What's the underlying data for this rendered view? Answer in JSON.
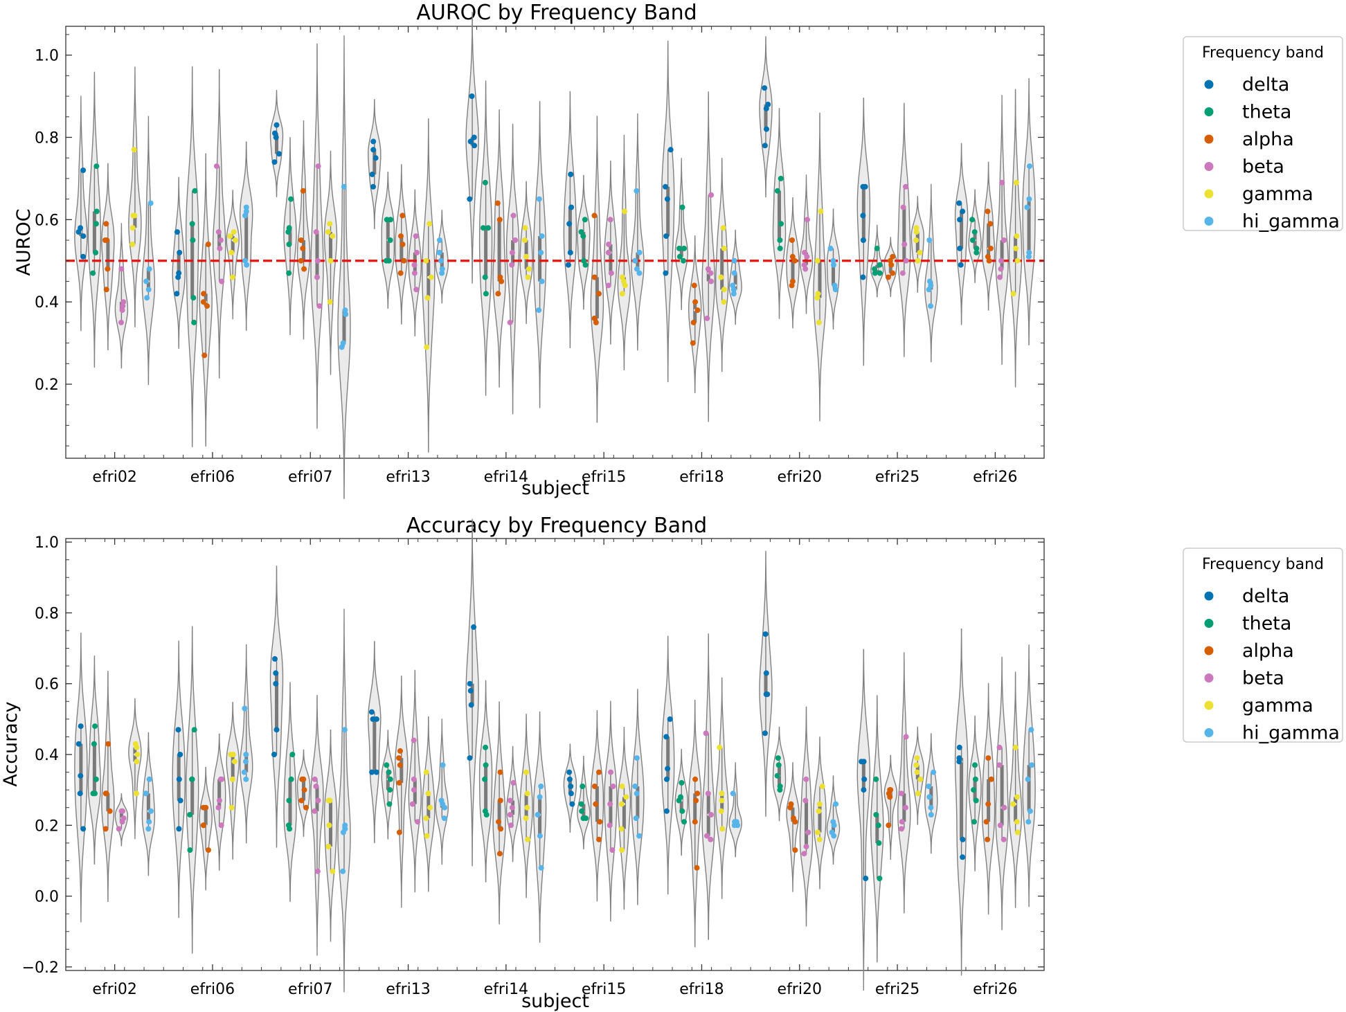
{
  "figure": {
    "legend_title": "Frequency band",
    "bands": [
      {
        "name": "delta",
        "color": "#0173b2"
      },
      {
        "name": "theta",
        "color": "#029e73"
      },
      {
        "name": "alpha",
        "color": "#d55e00"
      },
      {
        "name": "beta",
        "color": "#cc78bc"
      },
      {
        "name": "gamma",
        "color": "#ece133"
      },
      {
        "name": "hi_gamma",
        "color": "#56b4e9"
      }
    ]
  },
  "chart_data": [
    {
      "type": "violin",
      "title": "AUROC by Frequency Band",
      "xlabel": "subject",
      "ylabel": "AUROC",
      "ylim": [
        0.02,
        1.07
      ],
      "yticks": [
        "0.2",
        "0.4",
        "0.6",
        "0.8",
        "1.0"
      ],
      "reference_line": {
        "y": 0.5,
        "color": "#e8120e",
        "style": "dashed"
      },
      "legend": "right",
      "categories": [
        "efri02",
        "efri06",
        "efri07",
        "efri13",
        "efri14",
        "efri15",
        "efri18",
        "efri20",
        "efri25",
        "efri26"
      ],
      "series": [
        {
          "name": "delta",
          "values": [
            [
              0.51,
              0.56,
              0.57,
              0.58,
              0.72
            ],
            [
              0.42,
              0.46,
              0.47,
              0.52,
              0.57
            ],
            [
              0.74,
              0.76,
              0.8,
              0.81,
              0.83
            ],
            [
              0.68,
              0.71,
              0.75,
              0.77,
              0.79
            ],
            [
              0.65,
              0.78,
              0.79,
              0.8,
              0.9
            ],
            [
              0.49,
              0.52,
              0.59,
              0.63,
              0.71
            ],
            [
              0.47,
              0.56,
              0.65,
              0.68,
              0.77
            ],
            [
              0.78,
              0.82,
              0.87,
              0.88,
              0.92
            ],
            [
              0.46,
              0.55,
              0.61,
              0.68,
              0.68
            ],
            [
              0.49,
              0.53,
              0.6,
              0.62,
              0.64
            ]
          ]
        },
        {
          "name": "theta",
          "values": [
            [
              0.47,
              0.52,
              0.59,
              0.62,
              0.73
            ],
            [
              0.35,
              0.41,
              0.55,
              0.59,
              0.67
            ],
            [
              0.47,
              0.54,
              0.57,
              0.58,
              0.65
            ],
            [
              0.5,
              0.5,
              0.55,
              0.6,
              0.6
            ],
            [
              0.42,
              0.46,
              0.58,
              0.58,
              0.69
            ],
            [
              0.49,
              0.5,
              0.56,
              0.57,
              0.6
            ],
            [
              0.5,
              0.51,
              0.53,
              0.53,
              0.63
            ],
            [
              0.53,
              0.55,
              0.59,
              0.67,
              0.7
            ],
            [
              0.47,
              0.47,
              0.48,
              0.49,
              0.53
            ],
            [
              0.52,
              0.53,
              0.55,
              0.57,
              0.6
            ]
          ]
        },
        {
          "name": "alpha",
          "values": [
            [
              0.43,
              0.48,
              0.55,
              0.55,
              0.59
            ],
            [
              0.27,
              0.39,
              0.4,
              0.42,
              0.54
            ],
            [
              0.48,
              0.5,
              0.53,
              0.55,
              0.67
            ],
            [
              0.47,
              0.5,
              0.54,
              0.56,
              0.61
            ],
            [
              0.42,
              0.45,
              0.46,
              0.6,
              0.64
            ],
            [
              0.35,
              0.36,
              0.42,
              0.46,
              0.61
            ],
            [
              0.3,
              0.35,
              0.38,
              0.4,
              0.44
            ],
            [
              0.44,
              0.45,
              0.5,
              0.51,
              0.55
            ],
            [
              0.46,
              0.47,
              0.49,
              0.5,
              0.51
            ],
            [
              0.5,
              0.51,
              0.53,
              0.59,
              0.62
            ]
          ]
        },
        {
          "name": "beta",
          "values": [
            [
              0.35,
              0.38,
              0.39,
              0.4,
              0.48
            ],
            [
              0.45,
              0.53,
              0.55,
              0.57,
              0.73
            ],
            [
              0.39,
              0.46,
              0.5,
              0.57,
              0.73
            ],
            [
              0.43,
              0.47,
              0.49,
              0.52,
              0.56
            ],
            [
              0.35,
              0.49,
              0.52,
              0.55,
              0.61
            ],
            [
              0.44,
              0.47,
              0.52,
              0.54,
              0.6
            ],
            [
              0.36,
              0.45,
              0.47,
              0.48,
              0.66
            ],
            [
              0.48,
              0.49,
              0.51,
              0.52,
              0.6
            ],
            [
              0.47,
              0.5,
              0.54,
              0.63,
              0.68
            ],
            [
              0.46,
              0.48,
              0.5,
              0.55,
              0.69
            ]
          ]
        },
        {
          "name": "gamma",
          "values": [
            [
              0.54,
              0.58,
              0.61,
              0.61,
              0.77
            ],
            [
              0.46,
              0.52,
              0.55,
              0.56,
              0.57
            ],
            [
              0.4,
              0.5,
              0.56,
              0.57,
              0.59
            ],
            [
              0.29,
              0.41,
              0.46,
              0.5,
              0.59
            ],
            [
              0.46,
              0.48,
              0.51,
              0.55,
              0.58
            ],
            [
              0.42,
              0.44,
              0.45,
              0.46,
              0.62
            ],
            [
              0.4,
              0.43,
              0.46,
              0.53,
              0.58
            ],
            [
              0.35,
              0.41,
              0.42,
              0.5,
              0.62
            ],
            [
              0.5,
              0.52,
              0.55,
              0.57,
              0.58
            ],
            [
              0.42,
              0.5,
              0.53,
              0.56,
              0.69
            ]
          ]
        },
        {
          "name": "hi_gamma",
          "values": [
            [
              0.41,
              0.43,
              0.45,
              0.48,
              0.64
            ],
            [
              0.49,
              0.5,
              0.61,
              0.62,
              0.63
            ],
            [
              0.29,
              0.3,
              0.37,
              0.38,
              0.68
            ],
            [
              0.47,
              0.48,
              0.5,
              0.52,
              0.55
            ],
            [
              0.38,
              0.45,
              0.52,
              0.56,
              0.65
            ],
            [
              0.47,
              0.48,
              0.5,
              0.52,
              0.67
            ],
            [
              0.42,
              0.43,
              0.44,
              0.47,
              0.5
            ],
            [
              0.43,
              0.44,
              0.49,
              0.5,
              0.53
            ],
            [
              0.39,
              0.43,
              0.44,
              0.45,
              0.55
            ],
            [
              0.51,
              0.52,
              0.63,
              0.65,
              0.73
            ]
          ]
        }
      ]
    },
    {
      "type": "violin",
      "title": "Accuracy by Frequency Band",
      "xlabel": "subject",
      "ylabel": "Accuracy",
      "ylim": [
        -0.21,
        1.01
      ],
      "yticks": [
        "−0.2",
        "0.0",
        "0.2",
        "0.4",
        "0.6",
        "0.8",
        "1.0"
      ],
      "legend": "right",
      "categories": [
        "efri02",
        "efri06",
        "efri07",
        "efri13",
        "efri14",
        "efri15",
        "efri18",
        "efri20",
        "efri25",
        "efri26"
      ],
      "series": [
        {
          "name": "delta",
          "values": [
            [
              0.19,
              0.29,
              0.34,
              0.43,
              0.48
            ],
            [
              0.19,
              0.27,
              0.33,
              0.4,
              0.47
            ],
            [
              0.4,
              0.47,
              0.6,
              0.63,
              0.67
            ],
            [
              0.35,
              0.35,
              0.5,
              0.5,
              0.52
            ],
            [
              0.39,
              0.54,
              0.58,
              0.6,
              0.76
            ],
            [
              0.26,
              0.29,
              0.31,
              0.33,
              0.35
            ],
            [
              0.24,
              0.33,
              0.36,
              0.45,
              0.5
            ],
            [
              0.46,
              0.57,
              0.57,
              0.63,
              0.74
            ],
            [
              0.05,
              0.3,
              0.33,
              0.38,
              0.38
            ],
            [
              0.11,
              0.16,
              0.38,
              0.39,
              0.42
            ]
          ]
        },
        {
          "name": "theta",
          "values": [
            [
              0.29,
              0.29,
              0.33,
              0.43,
              0.48
            ],
            [
              0.13,
              0.23,
              0.33,
              0.33,
              0.47
            ],
            [
              0.19,
              0.2,
              0.27,
              0.33,
              0.4
            ],
            [
              0.26,
              0.3,
              0.33,
              0.35,
              0.37
            ],
            [
              0.23,
              0.24,
              0.33,
              0.37,
              0.42
            ],
            [
              0.22,
              0.22,
              0.24,
              0.26,
              0.31
            ],
            [
              0.21,
              0.24,
              0.27,
              0.28,
              0.32
            ],
            [
              0.3,
              0.31,
              0.34,
              0.37,
              0.39
            ],
            [
              0.05,
              0.15,
              0.2,
              0.23,
              0.33
            ],
            [
              0.21,
              0.27,
              0.3,
              0.33,
              0.37
            ]
          ]
        },
        {
          "name": "alpha",
          "values": [
            [
              0.19,
              0.24,
              0.29,
              0.29,
              0.43
            ],
            [
              0.13,
              0.2,
              0.2,
              0.25,
              0.25
            ],
            [
              0.25,
              0.27,
              0.3,
              0.33,
              0.33
            ],
            [
              0.18,
              0.32,
              0.37,
              0.39,
              0.41
            ],
            [
              0.12,
              0.19,
              0.21,
              0.27,
              0.35
            ],
            [
              0.16,
              0.21,
              0.26,
              0.31,
              0.35
            ],
            [
              0.08,
              0.21,
              0.27,
              0.29,
              0.33
            ],
            [
              0.13,
              0.21,
              0.22,
              0.25,
              0.26
            ],
            [
              0.2,
              0.28,
              0.29,
              0.3,
              0.3
            ],
            [
              0.16,
              0.21,
              0.26,
              0.33,
              0.39
            ]
          ]
        },
        {
          "name": "beta",
          "values": [
            [
              0.19,
              0.21,
              0.22,
              0.24,
              0.24
            ],
            [
              0.2,
              0.25,
              0.27,
              0.33,
              0.33
            ],
            [
              0.07,
              0.24,
              0.27,
              0.31,
              0.33
            ],
            [
              0.21,
              0.26,
              0.3,
              0.33,
              0.44
            ],
            [
              0.2,
              0.23,
              0.25,
              0.27,
              0.32
            ],
            [
              0.13,
              0.2,
              0.26,
              0.31,
              0.35
            ],
            [
              0.16,
              0.17,
              0.23,
              0.29,
              0.46
            ],
            [
              0.12,
              0.14,
              0.18,
              0.27,
              0.33
            ],
            [
              0.19,
              0.21,
              0.25,
              0.29,
              0.45
            ],
            [
              0.16,
              0.2,
              0.25,
              0.37,
              0.42
            ]
          ]
        },
        {
          "name": "gamma",
          "values": [
            [
              0.29,
              0.38,
              0.4,
              0.42,
              0.43
            ],
            [
              0.25,
              0.33,
              0.38,
              0.4,
              0.4
            ],
            [
              0.07,
              0.14,
              0.2,
              0.27,
              0.27
            ],
            [
              0.17,
              0.22,
              0.25,
              0.29,
              0.35
            ],
            [
              0.16,
              0.22,
              0.25,
              0.29,
              0.35
            ],
            [
              0.13,
              0.19,
              0.26,
              0.28,
              0.31
            ],
            [
              0.19,
              0.24,
              0.27,
              0.29,
              0.42
            ],
            [
              0.16,
              0.18,
              0.24,
              0.26,
              0.31
            ],
            [
              0.29,
              0.33,
              0.35,
              0.37,
              0.39
            ],
            [
              0.18,
              0.21,
              0.26,
              0.28,
              0.42
            ]
          ]
        },
        {
          "name": "hi_gamma",
          "values": [
            [
              0.19,
              0.21,
              0.24,
              0.29,
              0.33
            ],
            [
              0.33,
              0.35,
              0.38,
              0.4,
              0.53
            ],
            [
              0.07,
              0.18,
              0.19,
              0.2,
              0.47
            ],
            [
              0.22,
              0.25,
              0.26,
              0.27,
              0.37
            ],
            [
              0.08,
              0.17,
              0.23,
              0.28,
              0.31
            ],
            [
              0.17,
              0.22,
              0.29,
              0.31,
              0.39
            ],
            [
              0.2,
              0.2,
              0.21,
              0.21,
              0.29
            ],
            [
              0.17,
              0.18,
              0.2,
              0.21,
              0.26
            ],
            [
              0.23,
              0.25,
              0.28,
              0.31,
              0.35
            ],
            [
              0.21,
              0.24,
              0.33,
              0.37,
              0.47
            ]
          ]
        }
      ]
    }
  ]
}
